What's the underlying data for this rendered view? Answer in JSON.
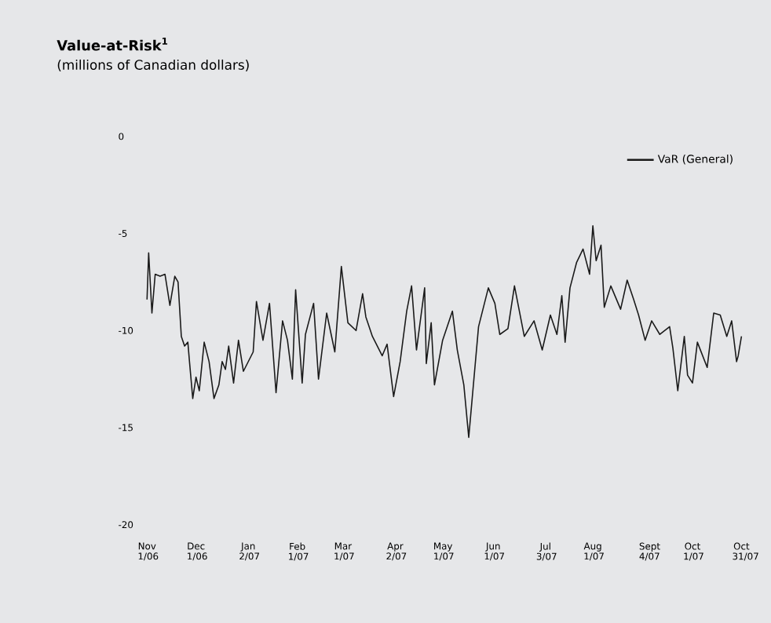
{
  "chart_data": {
    "type": "line",
    "title": "Value-at-Risk$^{1}$",
    "subtitle": "(millions of Canadian dollars)",
    "xlim": [
      "2006-11-01",
      "2007-10-31"
    ],
    "xticks": [
      {
        "value": "2006-11-01",
        "label": "Nov 1/06"
      },
      {
        "value": "2006-12-01",
        "label": "Dec 1/06"
      },
      {
        "value": "2007-01-02",
        "label": "Jan 2/07"
      },
      {
        "value": "2007-02-01",
        "label": "Feb 1/07"
      },
      {
        "value": "2007-03-01",
        "label": "Mar 1/07"
      },
      {
        "value": "2007-04-02",
        "label": "Apr 2/07"
      },
      {
        "value": "2007-05-01",
        "label": "May 1/07"
      },
      {
        "value": "2007-06-01",
        "label": "Jun 1/07"
      },
      {
        "value": "2007-07-03",
        "label": "Jul 3/07"
      },
      {
        "value": "2007-08-01",
        "label": "Aug 1/07"
      },
      {
        "value": "2007-09-04",
        "label": "Sept 4/07"
      },
      {
        "value": "2007-10-01",
        "label": "Oct 1/07"
      },
      {
        "value": "2007-10-31",
        "label": "Oct 31/07"
      }
    ],
    "ylim": [
      -20,
      0
    ],
    "yticks": [
      0,
      -5,
      -10,
      -15,
      -20
    ],
    "grid": false,
    "legend": "top right",
    "marker": "none",
    "line_style": "solid",
    "x": [
      "2006-11-01",
      "2006-11-02",
      "2006-11-04",
      "2006-11-06",
      "2006-11-09",
      "2006-11-12",
      "2006-11-15",
      "2006-11-18",
      "2006-11-20",
      "2006-11-22",
      "2006-11-24",
      "2006-11-26",
      "2006-11-27",
      "2006-11-29",
      "2006-12-01",
      "2006-12-03",
      "2006-12-06",
      "2006-12-09",
      "2006-12-12",
      "2006-12-15",
      "2006-12-17",
      "2006-12-19",
      "2006-12-21",
      "2006-12-24",
      "2006-12-27",
      "2006-12-30",
      "2007-01-05",
      "2007-01-07",
      "2007-01-11",
      "2007-01-15",
      "2007-01-19",
      "2007-01-23",
      "2007-01-26",
      "2007-01-29",
      "2007-01-31",
      "2007-02-04",
      "2007-02-06",
      "2007-02-11",
      "2007-02-14",
      "2007-02-19",
      "2007-02-24",
      "2007-02-28",
      "2007-03-04",
      "2007-03-09",
      "2007-03-13",
      "2007-03-15",
      "2007-03-19",
      "2007-03-25",
      "2007-03-28",
      "2007-04-01",
      "2007-04-05",
      "2007-04-09",
      "2007-04-12",
      "2007-04-15",
      "2007-04-20",
      "2007-04-21",
      "2007-04-24",
      "2007-04-26",
      "2007-05-01",
      "2007-05-07",
      "2007-05-10",
      "2007-05-14",
      "2007-05-17",
      "2007-05-23",
      "2007-05-29",
      "2007-06-02",
      "2007-06-05",
      "2007-06-10",
      "2007-06-14",
      "2007-06-20",
      "2007-06-26",
      "2007-07-01",
      "2007-07-06",
      "2007-07-10",
      "2007-07-13",
      "2007-07-15",
      "2007-07-18",
      "2007-07-22",
      "2007-07-26",
      "2007-07-30",
      "2007-08-01",
      "2007-08-03",
      "2007-08-06",
      "2007-08-08",
      "2007-08-12",
      "2007-08-18",
      "2007-08-22",
      "2007-08-26",
      "2007-08-29",
      "2007-09-02",
      "2007-09-06",
      "2007-09-11",
      "2007-09-17",
      "2007-09-19",
      "2007-09-22",
      "2007-09-26",
      "2007-09-28",
      "2007-10-01",
      "2007-10-04",
      "2007-10-10",
      "2007-10-14",
      "2007-10-18",
      "2007-10-22",
      "2007-10-25",
      "2007-10-28",
      "2007-10-29",
      "2007-10-31"
    ],
    "series": [
      {
        "name": "VaR (General)",
        "color": "#1a1a1a",
        "values": [
          -8.4,
          -6.0,
          -9.1,
          -7.1,
          -7.2,
          -7.1,
          -8.7,
          -7.2,
          -7.5,
          -10.3,
          -10.8,
          -10.6,
          -11.6,
          -13.5,
          -12.4,
          -13.1,
          -10.6,
          -11.6,
          -13.5,
          -12.8,
          -11.6,
          -12.0,
          -10.8,
          -12.7,
          -10.5,
          -12.1,
          -11.1,
          -8.5,
          -10.5,
          -8.6,
          -13.2,
          -9.5,
          -10.5,
          -12.5,
          -7.9,
          -12.7,
          -10.2,
          -8.6,
          -12.5,
          -9.1,
          -11.1,
          -6.7,
          -9.6,
          -10.0,
          -8.1,
          -9.3,
          -10.3,
          -11.3,
          -10.7,
          -13.4,
          -11.6,
          -9.0,
          -7.7,
          -11.0,
          -7.8,
          -11.7,
          -9.6,
          -12.8,
          -10.5,
          -9.0,
          -11.0,
          -12.8,
          -15.5,
          -9.8,
          -7.8,
          -8.6,
          -10.2,
          -9.9,
          -7.7,
          -10.3,
          -9.5,
          -11.0,
          -9.2,
          -10.2,
          -8.2,
          -10.6,
          -7.8,
          -6.5,
          -5.8,
          -7.1,
          -4.6,
          -6.4,
          -5.6,
          -8.8,
          -7.7,
          -8.9,
          -7.4,
          -8.4,
          -9.2,
          -10.5,
          -9.5,
          -10.2,
          -9.8,
          -10.9,
          -13.1,
          -10.3,
          -12.3,
          -12.7,
          -10.6,
          -11.9,
          -9.1,
          -9.2,
          -10.3,
          -9.5,
          -11.6,
          -11.3,
          -10.3
        ]
      }
    ]
  }
}
